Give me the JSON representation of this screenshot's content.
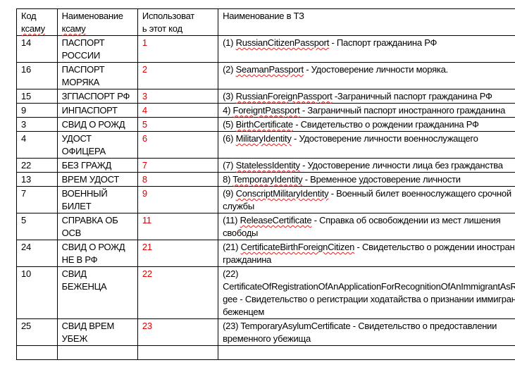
{
  "header": {
    "col1": [
      "Код",
      "ксаму"
    ],
    "col2": [
      "Наименование",
      "ксаму"
    ],
    "col3": "Использовать этот код",
    "col4": "Наименование в ТЗ"
  },
  "rows": [
    {
      "code": "14",
      "name": "ПАСПОРТ РОССИИ",
      "use": "1",
      "pre": "(1) ",
      "id": "RussianCitizenPassport",
      "desc": " - Паспорт гражданина РФ"
    },
    {
      "code": "16",
      "name": "ПАСПОРТ МОРЯКА",
      "use": "2",
      "pre": "(2) ",
      "id": "SeamanPassport",
      "desc": " - Удостоверение личности моряка."
    },
    {
      "code": "15",
      "name": "ЗГПАСПОРТ РФ",
      "use": "3",
      "pre": "(3) ",
      "id": "RussianForeignPassport",
      "desc": " -Заграничный паспорт гражданина РФ"
    },
    {
      "code": "9",
      "name": "ИНПАСПОРТ",
      "use": "4",
      "pre": "4) ",
      "id": "ForeigntPassport",
      "desc": " - Заграничный паспорт иностранного гражданина"
    },
    {
      "code": "3",
      "name": "СВИД О РОЖД",
      "use": "5",
      "pre": "(5) ",
      "id": "BirthCertificate",
      "desc": " - Свидетельство о рождении гражданина РФ"
    },
    {
      "code": "4",
      "name": "УДОСТ ОФИЦЕРА",
      "use": "6",
      "pre": "(6) ",
      "id": "MilitaryIdentity",
      "desc": " - Удостоверение личности военнослужащего"
    },
    {
      "code": "22",
      "name": "БЕЗ ГРАЖД",
      "use": "7",
      "pre": "(7) ",
      "id": "StatelessIdentity",
      "desc": " - Удостоверение личности лица без гражданства"
    },
    {
      "code": "13",
      "name": "ВРЕМ УДОСТ",
      "use": "8",
      "pre": "8) ",
      "id": "TemporaryIdentity",
      "desc": " - Временное удостоверение личности"
    },
    {
      "code": "7",
      "name": "ВОЕННЫЙ БИЛЕТ",
      "use": "9",
      "pre": "(9) ",
      "id": "ConscriptMilitaryIdentity",
      "desc": " - Военный билет военнослужащего срочной службы"
    },
    {
      "code": "5",
      "name": "СПРАВКА ОБ ОСВ",
      "use": "11",
      "pre": "(11) ",
      "id": "ReleaseCertificate",
      "desc": " - Справка об освобождении из мест лишения свободы"
    },
    {
      "code": "24",
      "name": "СВИД О РОЖД НЕ В РФ",
      "use": "21",
      "pre": "(21) ",
      "id": "CertificateBirthForeignCitizen",
      "desc": " - Свидетельство о рождении иностранного гражданина"
    },
    {
      "code": "10",
      "name": "СВИД БЕЖЕНЦА",
      "use": "22",
      "pre": "(22) ",
      "id": "CertificateOfRegistrationOfAnApplicationForRecognitionOfAnImmigrantAsRefugee",
      "desc": " - Свидетельство о регистрации ходатайства о признании иммигранта беженцем",
      "nospell": true
    },
    {
      "code": "25",
      "name": "СВИД ВРЕМ УБЕЖ",
      "use": "23",
      "pre": "(23) ",
      "id": "TemporaryAsylumCertificate",
      "desc": " - Свидетельство о предоставлении временного убежища",
      "nospell": true
    }
  ],
  "colors": {
    "code": "#e00000",
    "spellcheck": "#e02020"
  }
}
